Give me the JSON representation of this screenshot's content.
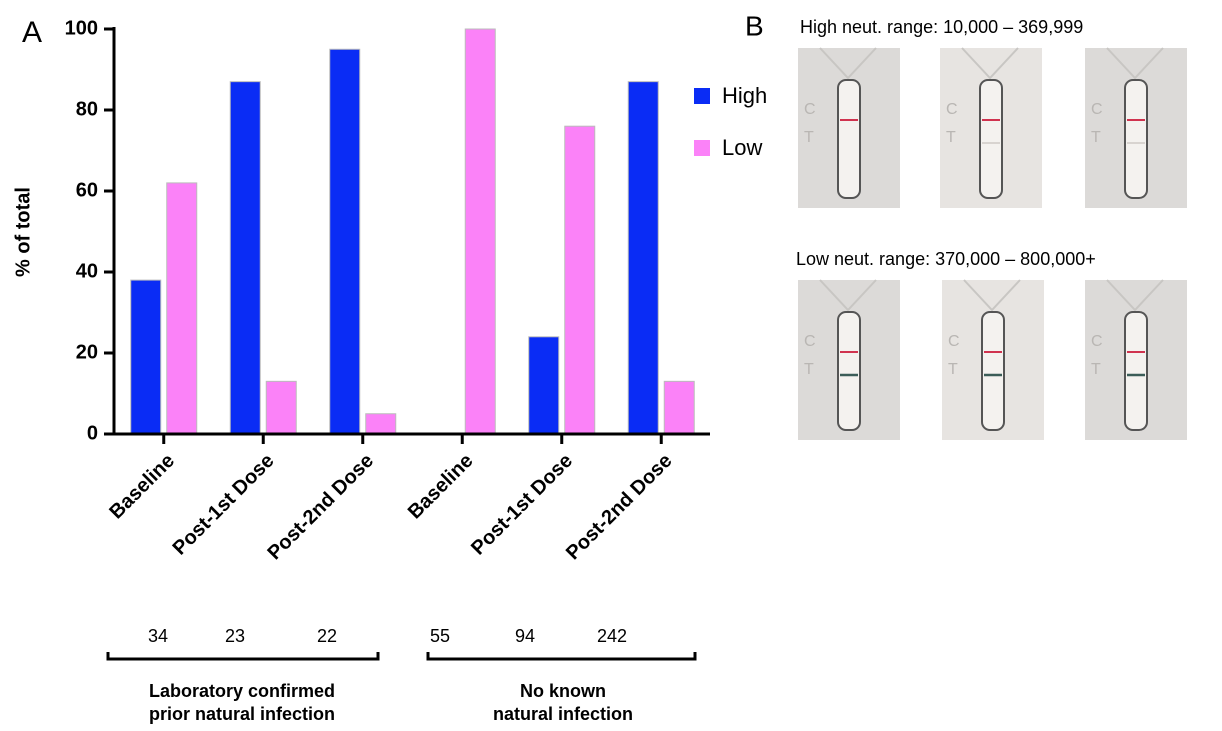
{
  "chart_data": {
    "type": "bar",
    "panel_label": "A",
    "ylabel": "% of total",
    "categories": [
      "Baseline",
      "Post-1st Dose",
      "Post-2nd Dose",
      "Baseline",
      "Post-1st Dose",
      "Post-2nd Dose"
    ],
    "series": [
      {
        "name": "High",
        "color": "#0a2cf5",
        "values": [
          38,
          87,
          95,
          0,
          24,
          87
        ]
      },
      {
        "name": "Low",
        "color": "#fb82f8",
        "values": [
          62,
          13,
          5,
          100,
          76,
          13
        ]
      }
    ],
    "ylim": [
      0,
      100
    ],
    "yticks": [
      0,
      20,
      40,
      60,
      80,
      100
    ],
    "legend": "right",
    "sample_sizes": [
      34,
      23,
      22,
      55,
      94,
      242
    ],
    "groups": [
      {
        "lines": [
          "Laboratory confirmed",
          "prior natural infection"
        ]
      },
      {
        "lines": [
          "No known",
          "natural infection"
        ]
      }
    ]
  },
  "panel_b": {
    "label": "B",
    "high_caption": "High neut. range:  10,000 – 369,999",
    "low_caption": "Low neut. range:  370,000 – 800,000+",
    "strip_letters": [
      "C",
      "T"
    ]
  }
}
